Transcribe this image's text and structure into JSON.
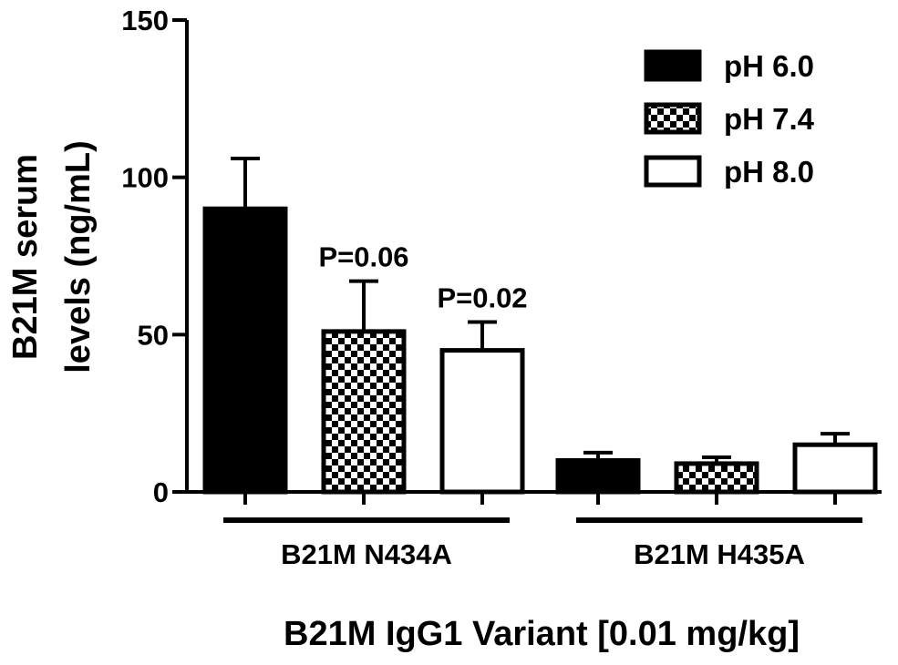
{
  "chart_data": {
    "type": "bar",
    "ylabel_lines": [
      "B21M serum",
      "levels (ng/mL)"
    ],
    "xlabel": "B21M IgG1 Variant [0.01 mg/kg]",
    "ylim": [
      0,
      150
    ],
    "yticks": [
      0,
      50,
      100,
      150
    ],
    "grid": false,
    "legend_position": "top-right",
    "groups": [
      "B21M N434A",
      "B21M H435A"
    ],
    "series": [
      {
        "name": "pH 6.0",
        "pattern": "solid",
        "values": [
          90,
          10
        ],
        "errors": [
          16,
          2.5
        ]
      },
      {
        "name": "pH 7.4",
        "pattern": "checker",
        "values": [
          51,
          9
        ],
        "errors": [
          16,
          2
        ]
      },
      {
        "name": "pH 8.0",
        "pattern": "open",
        "values": [
          45,
          15
        ],
        "errors": [
          9,
          3.5
        ]
      }
    ],
    "annotations": [
      {
        "text": "P=0.06",
        "group": 0,
        "series": 1
      },
      {
        "text": "P=0.02",
        "group": 0,
        "series": 2
      }
    ],
    "colors": {
      "ink": "#000000",
      "paper": "#ffffff"
    }
  }
}
